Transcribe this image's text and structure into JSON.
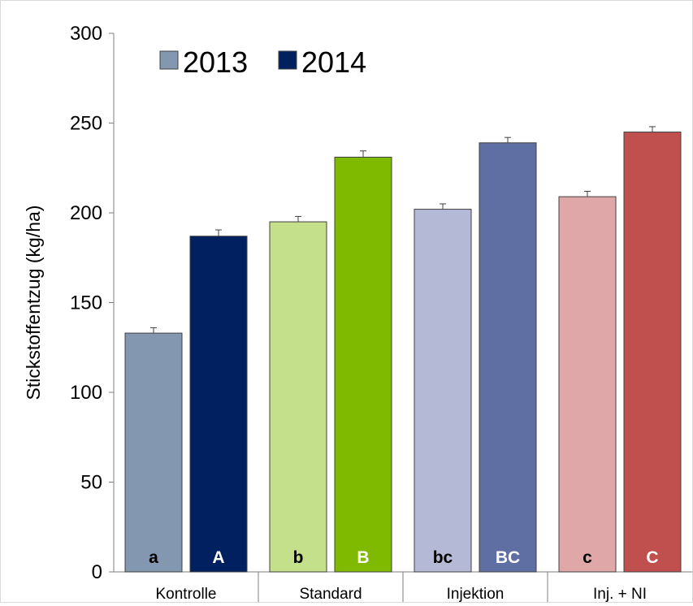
{
  "chart_data": {
    "type": "bar",
    "ylabel": "Stickstoffentzug (kg/ha)",
    "ylim": [
      0,
      300
    ],
    "yticks": [
      0,
      50,
      100,
      150,
      200,
      250,
      300
    ],
    "categories": [
      "Kontrolle",
      "Standard",
      "Injektion",
      "Inj. + NI"
    ],
    "legend": {
      "position": "top-left",
      "items": [
        {
          "label": "2013",
          "color": "#8497b0"
        },
        {
          "label": "2014",
          "color": "#002060"
        }
      ]
    },
    "series": [
      {
        "name": "2013",
        "values": [
          133,
          195,
          202,
          209
        ],
        "errors": [
          3,
          3,
          3,
          3
        ],
        "colors": [
          "#8497b0",
          "#c5e08a",
          "#b4bad6",
          "#dfa7a7"
        ],
        "letters": [
          "a",
          "b",
          "bc",
          "c"
        ],
        "letter_colors": [
          "#000000",
          "#000000",
          "#000000",
          "#000000"
        ]
      },
      {
        "name": "2014",
        "values": [
          187,
          231,
          239,
          245
        ],
        "errors": [
          3.5,
          3.5,
          3,
          3
        ],
        "colors": [
          "#002060",
          "#7fba00",
          "#5f6fa3",
          "#c0504d"
        ],
        "letters": [
          "A",
          "B",
          "BC",
          "C"
        ],
        "letter_colors": [
          "#ffffff",
          "#ffffff",
          "#ffffff",
          "#ffffff"
        ]
      }
    ]
  }
}
